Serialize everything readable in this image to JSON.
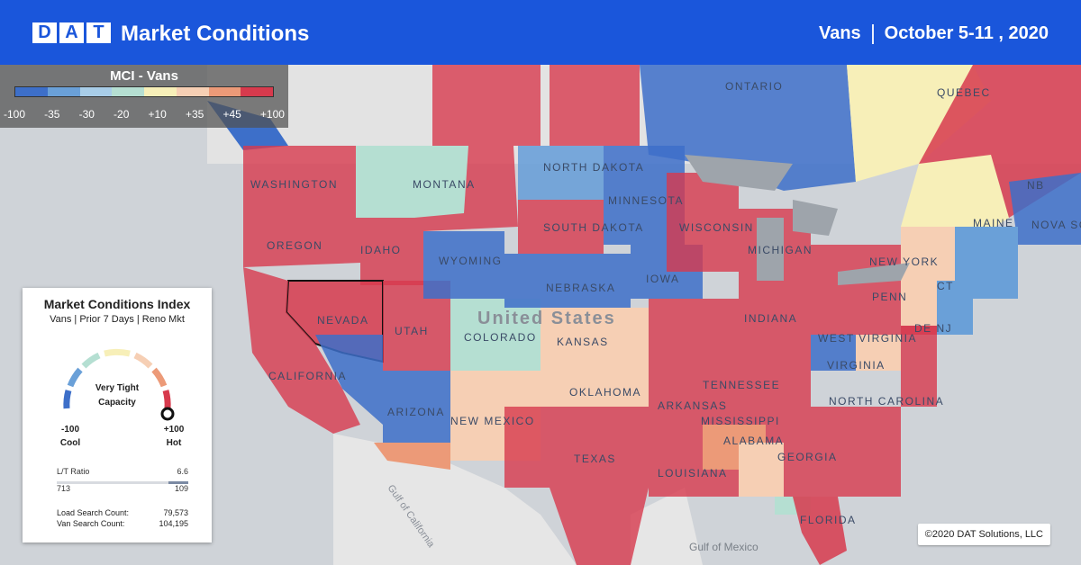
{
  "header": {
    "logo_letters": [
      "D",
      "A",
      "T"
    ],
    "title": "Market Conditions",
    "equipment": "Vans",
    "date_range": "October 5-11 , 2020"
  },
  "legend": {
    "title": "MCI - Vans",
    "labels": [
      "-100",
      "-35",
      "-30",
      "-20",
      "+10",
      "+35",
      "+45",
      "+100"
    ],
    "colors": [
      "#3d6fc9",
      "#6aa0d8",
      "#a8cde8",
      "#b5dfd2",
      "#f7efb8",
      "#f6cfb4",
      "#ec9a78",
      "#d73a4d"
    ]
  },
  "map_labels": {
    "countries": [
      "United States"
    ],
    "provinces": [
      "ONTARIO",
      "QUEBEC",
      "NB",
      "NOVA SC"
    ],
    "states": [
      "WASHINGTON",
      "OREGON",
      "IDAHO",
      "MONTANA",
      "NORTH DAKOTA",
      "SOUTH DAKOTA",
      "MINNESOTA",
      "WYOMING",
      "NEVADA",
      "UTAH",
      "COLORADO",
      "NEBRASKA",
      "IOWA",
      "KANSAS",
      "CALIFORNIA",
      "ARIZONA",
      "NEW MEXICO",
      "OKLAHOMA",
      "TEXAS",
      "WISCONSIN",
      "MICHIGAN",
      "INDIANA",
      "ARKANSAS",
      "LOUISIANA",
      "MISSISSIPPI",
      "ALABAMA",
      "GEORGIA",
      "TENNESSEE",
      "FLORIDA",
      "WEST VIRGINIA",
      "VIRGINIA",
      "NORTH CAROLINA",
      "PENN",
      "NEW YORK",
      "MAINE",
      "CT",
      "DE NJ"
    ],
    "water": [
      "Gulf of California",
      "Gulf of Mexico"
    ]
  },
  "card": {
    "title": "Market Conditions Index",
    "subtitle": "Vans | Prior 7 Days | Reno Mkt",
    "gauge_status_line1": "Very Tight",
    "gauge_status_line2": "Capacity",
    "gauge_value": 100,
    "min_value": "-100",
    "min_label": "Cool",
    "max_value": "+100",
    "max_label": "Hot",
    "lt_ratio_label": "L/T Ratio",
    "lt_ratio_value": "6.6",
    "lt_left": "713",
    "lt_right": "109",
    "load_search_label": "Load Search Count:",
    "load_search_value": "79,573",
    "van_search_label": "Van Search Count:",
    "van_search_value": "104,195"
  },
  "copyright": "©2020 DAT Solutions, LLC"
}
